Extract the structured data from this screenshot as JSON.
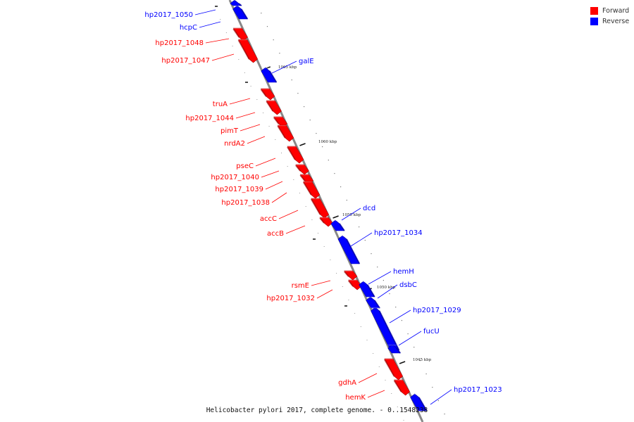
{
  "legend": {
    "forward_label": "Forward",
    "reverse_label": "Reverse",
    "forward_color": "#ff0000",
    "reverse_color": "#0000ff"
  },
  "caption": "Helicobacter pylori 2017, complete genome. - 0..1548238",
  "ticks": [
    "1065 kbp",
    "1060 kbp",
    "1055 kbp",
    "1050 kbp",
    "1045 kbp"
  ],
  "genes": [
    {
      "name": "hp2017_1050",
      "strand": "reverse"
    },
    {
      "name": "hcpC",
      "strand": "reverse"
    },
    {
      "name": "hp2017_1048",
      "strand": "forward"
    },
    {
      "name": "hp2017_1047",
      "strand": "forward"
    },
    {
      "name": "galE",
      "strand": "reverse"
    },
    {
      "name": "truA",
      "strand": "forward"
    },
    {
      "name": "hp2017_1044",
      "strand": "forward"
    },
    {
      "name": "pimT",
      "strand": "forward"
    },
    {
      "name": "nrdA2",
      "strand": "forward"
    },
    {
      "name": "pseC",
      "strand": "forward"
    },
    {
      "name": "hp2017_1040",
      "strand": "forward"
    },
    {
      "name": "hp2017_1039",
      "strand": "forward"
    },
    {
      "name": "hp2017_1038",
      "strand": "forward"
    },
    {
      "name": "accC",
      "strand": "forward"
    },
    {
      "name": "accB",
      "strand": "forward"
    },
    {
      "name": "dcd",
      "strand": "reverse"
    },
    {
      "name": "hp2017_1034",
      "strand": "reverse"
    },
    {
      "name": "rsmE",
      "strand": "forward"
    },
    {
      "name": "hp2017_1032",
      "strand": "forward"
    },
    {
      "name": "hemH",
      "strand": "reverse"
    },
    {
      "name": "dsbC",
      "strand": "reverse"
    },
    {
      "name": "hp2017_1029",
      "strand": "reverse"
    },
    {
      "name": "fucU",
      "strand": "reverse"
    },
    {
      "name": "gdhA",
      "strand": "forward"
    },
    {
      "name": "hemK",
      "strand": "forward"
    },
    {
      "name": "hp2017_1023",
      "strand": "reverse"
    }
  ]
}
